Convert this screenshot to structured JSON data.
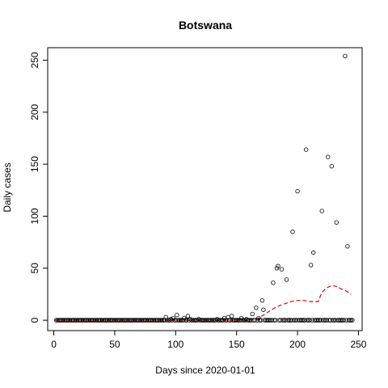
{
  "chart_data": {
    "type": "scatter",
    "title": "Botswana",
    "xlabel": "Days since 2020-01-01",
    "ylabel": "Daily cases",
    "xlim": [
      -5,
      253
    ],
    "ylim": [
      -10,
      262
    ],
    "xticks": [
      0,
      50,
      100,
      150,
      200,
      250
    ],
    "yticks": [
      0,
      50,
      100,
      150,
      200,
      250
    ],
    "legend": "none",
    "grid": false,
    "points_color": "#000000",
    "trend_color": "#dd0000",
    "zero_days_range": [
      2,
      245
    ],
    "points": [
      {
        "x": 92,
        "y": 3
      },
      {
        "x": 96,
        "y": 1
      },
      {
        "x": 98,
        "y": 2
      },
      {
        "x": 101,
        "y": 5
      },
      {
        "x": 107,
        "y": 2
      },
      {
        "x": 110,
        "y": 4
      },
      {
        "x": 112,
        "y": 1
      },
      {
        "x": 119,
        "y": 1
      },
      {
        "x": 134,
        "y": 1
      },
      {
        "x": 140,
        "y": 2
      },
      {
        "x": 143,
        "y": 3
      },
      {
        "x": 146,
        "y": 4
      },
      {
        "x": 154,
        "y": 2
      },
      {
        "x": 158,
        "y": 1
      },
      {
        "x": 163,
        "y": 6
      },
      {
        "x": 166,
        "y": 12
      },
      {
        "x": 168,
        "y": 2
      },
      {
        "x": 171,
        "y": 19
      },
      {
        "x": 172,
        "y": 10
      },
      {
        "x": 180,
        "y": 36
      },
      {
        "x": 183,
        "y": 50
      },
      {
        "x": 184,
        "y": 52
      },
      {
        "x": 187,
        "y": 49
      },
      {
        "x": 191,
        "y": 39
      },
      {
        "x": 196,
        "y": 85
      },
      {
        "x": 200,
        "y": 124
      },
      {
        "x": 207,
        "y": 164
      },
      {
        "x": 211,
        "y": 53
      },
      {
        "x": 213,
        "y": 65
      },
      {
        "x": 220,
        "y": 105
      },
      {
        "x": 225,
        "y": 157
      },
      {
        "x": 228,
        "y": 148
      },
      {
        "x": 232,
        "y": 94
      },
      {
        "x": 239,
        "y": 254
      },
      {
        "x": 241,
        "y": 71
      }
    ],
    "trend": {
      "x": [
        1,
        160,
        164,
        168,
        172,
        176,
        180,
        185,
        190,
        195,
        200,
        205,
        210,
        214,
        217,
        219,
        221,
        224,
        227,
        230,
        233,
        236,
        240,
        244
      ],
      "y": [
        0,
        0,
        1,
        2,
        5,
        8,
        11,
        14,
        16,
        18,
        19,
        19,
        18,
        18,
        18,
        24,
        28,
        31,
        33,
        33,
        32,
        30,
        28,
        25
      ]
    }
  }
}
